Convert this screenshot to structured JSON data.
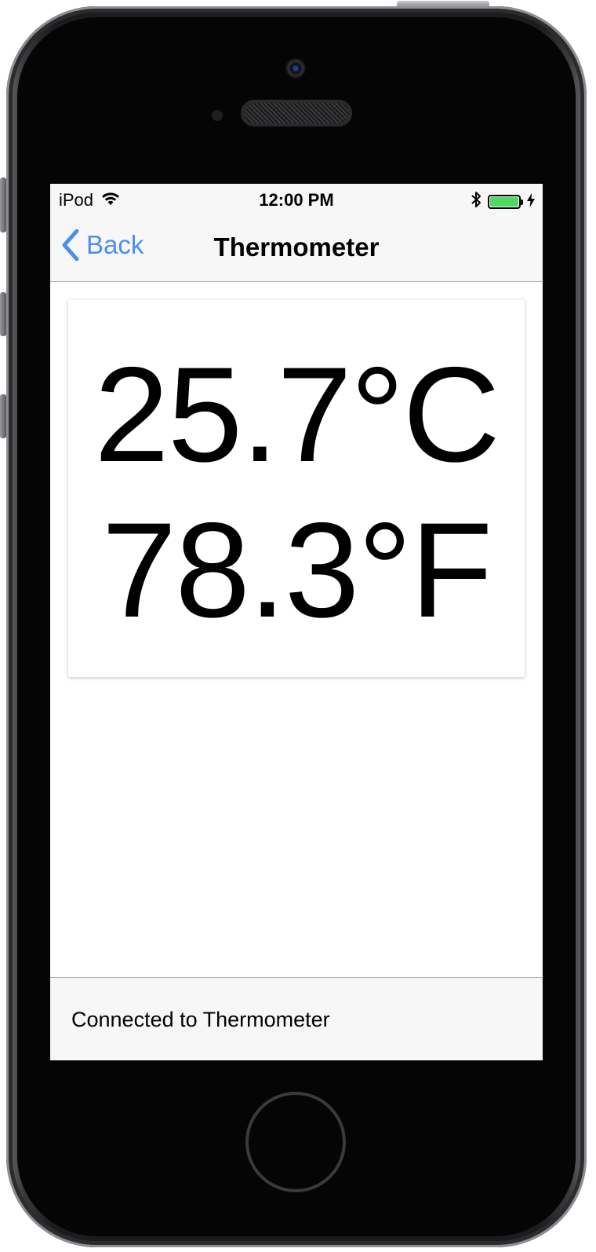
{
  "status_bar": {
    "carrier": "iPod",
    "time": "12:00 PM",
    "battery_level": 1.0,
    "battery_color": "#4cd964",
    "icons": [
      "wifi-icon",
      "bluetooth-icon",
      "battery-icon",
      "charging-bolt-icon"
    ]
  },
  "nav": {
    "back_label": "Back",
    "title": "Thermometer",
    "accent_color": "#4a8ff0"
  },
  "readings": {
    "celsius": "25.7°C",
    "fahrenheit": "78.3°F"
  },
  "footer": {
    "status_text": "Connected to Thermometer"
  }
}
